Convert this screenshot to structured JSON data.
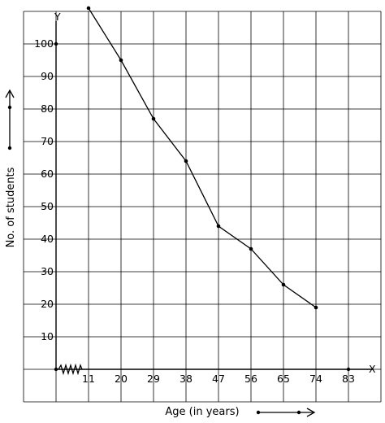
{
  "chart_data": {
    "type": "line",
    "xlabel": "Age (in years)",
    "ylabel": "No. of students",
    "x_axis_letter": "X",
    "y_axis_letter": "Y",
    "x": [
      11,
      20,
      29,
      38,
      47,
      56,
      65,
      74
    ],
    "series": [
      {
        "values": [
          111,
          95,
          77,
          64,
          44,
          37,
          26,
          19
        ]
      }
    ],
    "xticks": [
      11,
      20,
      29,
      38,
      47,
      56,
      65,
      74,
      83
    ],
    "yticks": [
      10,
      20,
      30,
      40,
      50,
      60,
      70,
      80,
      90,
      100
    ],
    "ylim": [
      -10,
      110
    ],
    "grid": true
  }
}
